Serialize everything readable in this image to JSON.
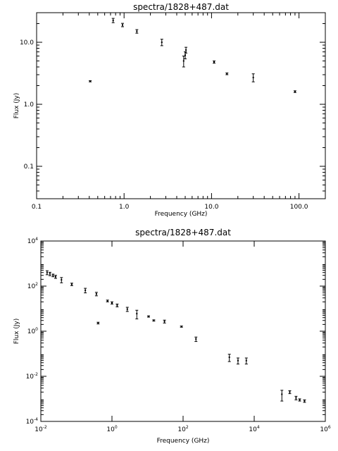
{
  "chart_data": [
    {
      "type": "scatter",
      "title": "spectra/1828+487.dat",
      "xlabel": "Frequency (GHz)",
      "ylabel": "Flux (Jy)",
      "xscale": "log",
      "yscale": "log",
      "xlim": [
        0.1,
        200
      ],
      "ylim": [
        0.03,
        30
      ],
      "grid": false,
      "x_ticks": [
        {
          "v": 0.1,
          "label": "0.1"
        },
        {
          "v": 1,
          "label": "1.0"
        },
        {
          "v": 10,
          "label": "10.0"
        },
        {
          "v": 100,
          "label": "100.0"
        }
      ],
      "y_ticks": [
        {
          "v": 0.1,
          "label": "0.1"
        },
        {
          "v": 1,
          "label": "1.0"
        },
        {
          "v": 10,
          "label": "10.0"
        }
      ],
      "points": [
        {
          "x": 0.41,
          "y": 2.35,
          "err": 0.05
        },
        {
          "x": 0.75,
          "y": 22.5,
          "err": 1.8
        },
        {
          "x": 0.96,
          "y": 19.0,
          "err": 1.2
        },
        {
          "x": 1.4,
          "y": 15.0,
          "err": 1.0
        },
        {
          "x": 2.7,
          "y": 10.0,
          "err": 1.2
        },
        {
          "x": 4.8,
          "y": 5.0,
          "err": 1.0
        },
        {
          "x": 5.0,
          "y": 6.2,
          "err": 0.8
        },
        {
          "x": 5.1,
          "y": 7.5,
          "err": 0.8
        },
        {
          "x": 10.7,
          "y": 4.8,
          "err": 0.2
        },
        {
          "x": 15.0,
          "y": 3.1,
          "err": 0.1
        },
        {
          "x": 30.0,
          "y": 2.7,
          "err": 0.4
        },
        {
          "x": 90.0,
          "y": 1.6,
          "err": 0.05
        }
      ]
    },
    {
      "type": "scatter",
      "title": "spectra/1828+487.dat",
      "xlabel": "Frequency (GHz)",
      "ylabel": "Flux (Jy)",
      "xscale": "log",
      "yscale": "log",
      "xlim": [
        0.01,
        1000000
      ],
      "ylim": [
        0.0001,
        10000
      ],
      "grid": false,
      "x_ticks": [
        {
          "v": 0.01,
          "b": "10",
          "e": "-2"
        },
        {
          "v": 1,
          "b": "10",
          "e": "0"
        },
        {
          "v": 100,
          "b": "10",
          "e": "2"
        },
        {
          "v": 10000,
          "b": "10",
          "e": "4"
        },
        {
          "v": 1000000,
          "b": "10",
          "e": "6"
        }
      ],
      "y_ticks": [
        {
          "v": 0.0001,
          "b": "10",
          "e": "-4"
        },
        {
          "v": 0.01,
          "b": "10",
          "e": "-2"
        },
        {
          "v": 1,
          "b": "10",
          "e": "0"
        },
        {
          "v": 100,
          "b": "10",
          "e": "2"
        },
        {
          "v": 10000,
          "b": "10",
          "e": "4"
        }
      ],
      "points": [
        {
          "x": 0.015,
          "y": 400,
          "err": 80
        },
        {
          "x": 0.018,
          "y": 350,
          "err": 60
        },
        {
          "x": 0.022,
          "y": 300,
          "err": 40
        },
        {
          "x": 0.026,
          "y": 260,
          "err": 40
        },
        {
          "x": 0.038,
          "y": 190,
          "err": 50
        },
        {
          "x": 0.074,
          "y": 120,
          "err": 15
        },
        {
          "x": 0.178,
          "y": 65,
          "err": 15
        },
        {
          "x": 0.365,
          "y": 45,
          "err": 8
        },
        {
          "x": 0.408,
          "y": 2.3,
          "err": 0.2
        },
        {
          "x": 0.75,
          "y": 22,
          "err": 2
        },
        {
          "x": 1.0,
          "y": 18,
          "err": 2
        },
        {
          "x": 1.4,
          "y": 14,
          "err": 2
        },
        {
          "x": 2.7,
          "y": 9.5,
          "err": 2
        },
        {
          "x": 5.0,
          "y": 6,
          "err": 2.5
        },
        {
          "x": 10.7,
          "y": 4.5,
          "err": 0.3
        },
        {
          "x": 15,
          "y": 3.0,
          "err": 0.2
        },
        {
          "x": 30,
          "y": 2.7,
          "err": 0.4
        },
        {
          "x": 90,
          "y": 1.6,
          "err": 0.1
        },
        {
          "x": 230,
          "y": 0.45,
          "err": 0.1
        },
        {
          "x": 2000,
          "y": 0.07,
          "err": 0.025
        },
        {
          "x": 3500,
          "y": 0.05,
          "err": 0.015
        },
        {
          "x": 6000,
          "y": 0.05,
          "err": 0.015
        },
        {
          "x": 60000,
          "y": 0.0016,
          "err": 0.0008
        },
        {
          "x": 100000,
          "y": 0.002,
          "err": 0.0003
        },
        {
          "x": 150000,
          "y": 0.0011,
          "err": 0.0002
        },
        {
          "x": 190000,
          "y": 0.0009,
          "err": 0.0001
        },
        {
          "x": 260000,
          "y": 0.0008,
          "err": 0.0001
        }
      ]
    }
  ]
}
